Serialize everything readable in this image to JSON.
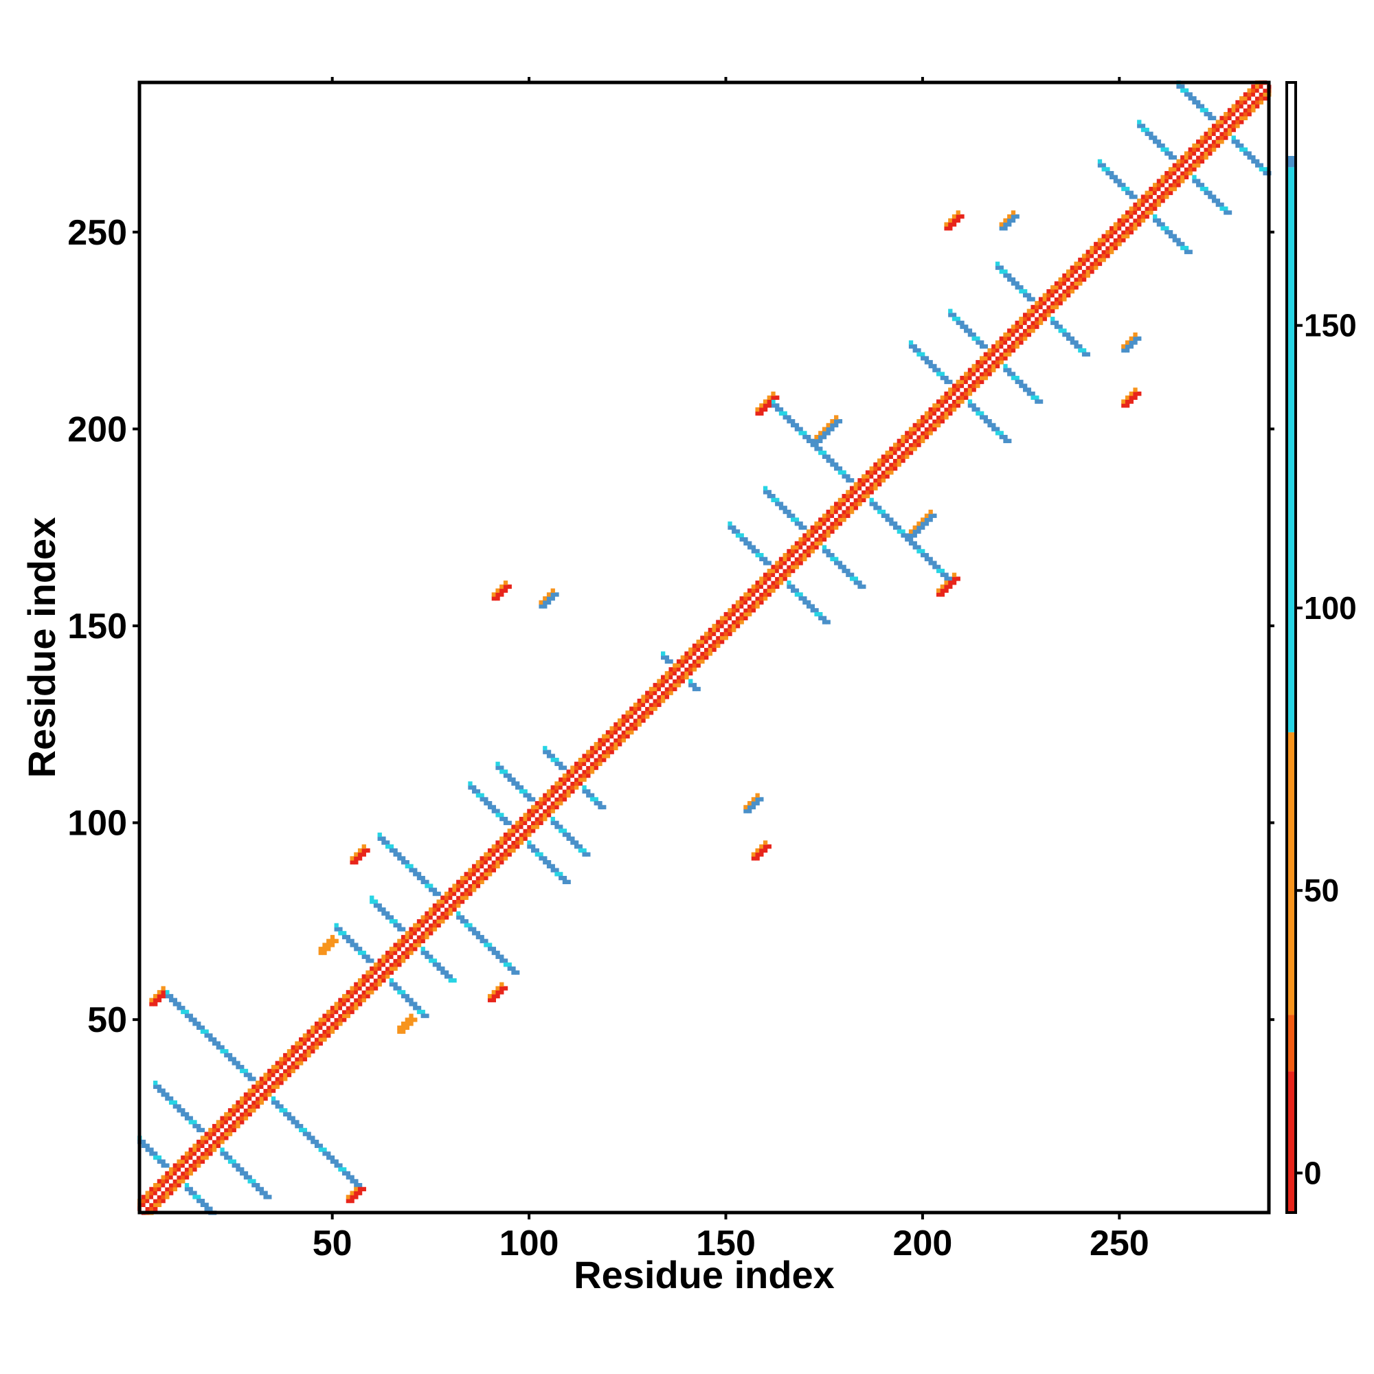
{
  "chart_data": {
    "type": "heatmap",
    "title": "",
    "xlabel": "Residue index",
    "ylabel": "Residue index",
    "xlim": [
      1,
      288
    ],
    "ylim": [
      1,
      288
    ],
    "xticks": [
      50,
      100,
      150,
      200,
      250
    ],
    "yticks": [
      50,
      100,
      150,
      200,
      250
    ],
    "colorbar": {
      "ticks": [
        0,
        50,
        100,
        150
      ],
      "range": [
        -7,
        193
      ],
      "bands": [
        {
          "from": -7,
          "to": 18,
          "color": "#e8251b"
        },
        {
          "from": 18,
          "to": 28,
          "color": "#f25c12"
        },
        {
          "from": 28,
          "to": 78,
          "color": "#f7941d"
        },
        {
          "from": 78,
          "to": 178,
          "color": "#27d4e4"
        },
        {
          "from": 178,
          "to": 180,
          "color": "#4a90c9"
        },
        {
          "from": 180,
          "to": 193,
          "color": "#ffffff"
        }
      ]
    },
    "diagonal": {
      "from": 1,
      "to": 288
    },
    "crosses": [
      {
        "center": [
          10,
          10
        ],
        "len": 10
      },
      {
        "center": [
          19,
          19
        ],
        "len": 14
      },
      {
        "center": [
          32,
          32
        ],
        "len": 24
      },
      {
        "center": [
          62,
          62
        ],
        "len": 11
      },
      {
        "center": [
          70,
          70
        ],
        "len": 10
      },
      {
        "center": [
          79,
          79
        ],
        "len": 17
      },
      {
        "center": [
          97,
          97
        ],
        "len": 12
      },
      {
        "center": [
          103,
          103
        ],
        "len": 11
      },
      {
        "center": [
          111,
          111
        ],
        "len": 7
      },
      {
        "center": [
          138,
          138
        ],
        "len": 4
      },
      {
        "center": [
          163,
          163
        ],
        "len": 12
      },
      {
        "center": [
          172,
          172
        ],
        "len": 12
      },
      {
        "center": [
          184,
          184
        ],
        "len": 22
      },
      {
        "center": [
          209,
          209
        ],
        "len": 12
      },
      {
        "center": [
          218,
          218
        ],
        "len": 11
      },
      {
        "center": [
          230,
          230
        ],
        "len": 11
      },
      {
        "center": [
          256,
          256
        ],
        "len": 11
      },
      {
        "center": [
          266,
          266
        ],
        "len": 11
      },
      {
        "center": [
          276,
          276
        ],
        "len": 11
      }
    ],
    "blobs": [
      {
        "x": 4,
        "y": 54,
        "len": 4,
        "color": "#e8251b"
      },
      {
        "x": 54,
        "y": 4,
        "len": 4,
        "color": "#e8251b"
      },
      {
        "x": 55,
        "y": 90,
        "len": 4,
        "color": "#e8251b"
      },
      {
        "x": 90,
        "y": 55,
        "len": 4,
        "color": "#e8251b"
      },
      {
        "x": 91,
        "y": 157,
        "len": 4,
        "color": "#e8251b"
      },
      {
        "x": 157,
        "y": 91,
        "len": 4,
        "color": "#e8251b"
      },
      {
        "x": 158,
        "y": 204,
        "len": 5,
        "color": "#e8251b"
      },
      {
        "x": 204,
        "y": 158,
        "len": 5,
        "color": "#e8251b"
      },
      {
        "x": 206,
        "y": 251,
        "len": 4,
        "color": "#e8251b"
      },
      {
        "x": 251,
        "y": 206,
        "len": 4,
        "color": "#e8251b"
      },
      {
        "x": 103,
        "y": 155,
        "len": 4,
        "color": "#4a90c9"
      },
      {
        "x": 155,
        "y": 103,
        "len": 4,
        "color": "#4a90c9"
      },
      {
        "x": 220,
        "y": 251,
        "len": 4,
        "color": "#4a90c9"
      },
      {
        "x": 251,
        "y": 220,
        "len": 4,
        "color": "#4a90c9"
      },
      {
        "x": 197,
        "y": 173,
        "len": 6,
        "color": "#4a90c9"
      },
      {
        "x": 173,
        "y": 197,
        "len": 6,
        "color": "#4a90c9"
      },
      {
        "x": 47,
        "y": 67,
        "len": 4,
        "color": "#f7941d"
      },
      {
        "x": 67,
        "y": 47,
        "len": 4,
        "color": "#f7941d"
      }
    ]
  }
}
